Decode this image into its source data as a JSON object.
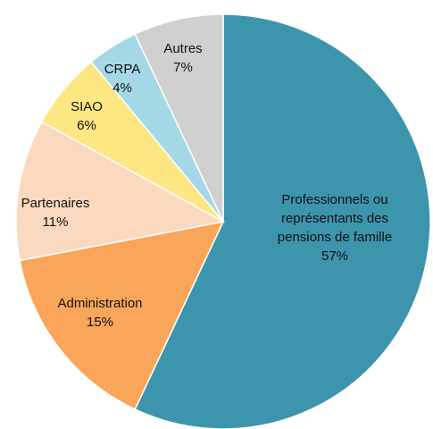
{
  "chart_data": {
    "type": "pie",
    "categories": [
      "Professionnels ou représentants des pensions de famille",
      "Administration",
      "Partenaires",
      "SIAO",
      "CRPA",
      "Autres"
    ],
    "values": [
      57,
      15,
      11,
      6,
      4,
      7
    ],
    "value_labels": [
      "57%",
      "15%",
      "11%",
      "6%",
      "4%",
      "7%"
    ],
    "colors": [
      "#3d95ad",
      "#f9a65a",
      "#fbd9bf",
      "#fde783",
      "#a5d8e6",
      "#d0d0d0"
    ]
  }
}
